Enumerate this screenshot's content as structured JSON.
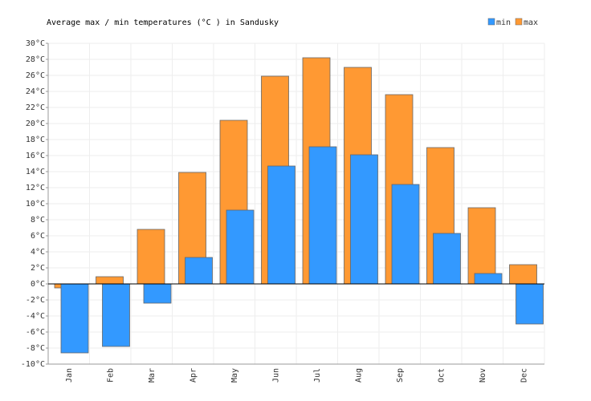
{
  "chart_data": {
    "type": "bar",
    "title": "Average max / min temperatures (°C ) in Sandusky",
    "categories": [
      "Jan",
      "Feb",
      "Mar",
      "Apr",
      "May",
      "Jun",
      "Jul",
      "Aug",
      "Sep",
      "Oct",
      "Nov",
      "Dec"
    ],
    "series": [
      {
        "name": "max",
        "color": "#ff9933",
        "values": [
          -0.5,
          0.9,
          6.8,
          13.9,
          20.4,
          25.9,
          28.2,
          27.0,
          23.6,
          17.0,
          9.5,
          2.4
        ]
      },
      {
        "name": "min",
        "color": "#3399ff",
        "values": [
          -8.6,
          -7.8,
          -2.4,
          3.3,
          9.2,
          14.7,
          17.1,
          16.1,
          12.4,
          6.3,
          1.3,
          -5.0
        ]
      }
    ],
    "legend_order": [
      "min",
      "max"
    ],
    "legend": "top-right",
    "grid": true,
    "ylim": [
      -10,
      30
    ],
    "yticks": [
      {
        "value": -10,
        "label": "-10°C"
      },
      {
        "value": -8,
        "label": "-8°C"
      },
      {
        "value": -6,
        "label": "-6°C"
      },
      {
        "value": -4,
        "label": "-4°C"
      },
      {
        "value": -2,
        "label": "-2°C"
      },
      {
        "value": 0,
        "label": "0°C"
      },
      {
        "value": 2,
        "label": "2°C"
      },
      {
        "value": 4,
        "label": "4°C"
      },
      {
        "value": 6,
        "label": "6°C"
      },
      {
        "value": 8,
        "label": "8°C"
      },
      {
        "value": 10,
        "label": "10°C"
      },
      {
        "value": 12,
        "label": "12°C"
      },
      {
        "value": 14,
        "label": "14°C"
      },
      {
        "value": 16,
        "label": "16°C"
      },
      {
        "value": 18,
        "label": "18°C"
      },
      {
        "value": 20,
        "label": "20°C"
      },
      {
        "value": 22,
        "label": "22°C"
      },
      {
        "value": 24,
        "label": "24°C"
      },
      {
        "value": 26,
        "label": "26°C"
      },
      {
        "value": 28,
        "label": "28°C"
      },
      {
        "value": 30,
        "label": "30°C"
      }
    ]
  }
}
